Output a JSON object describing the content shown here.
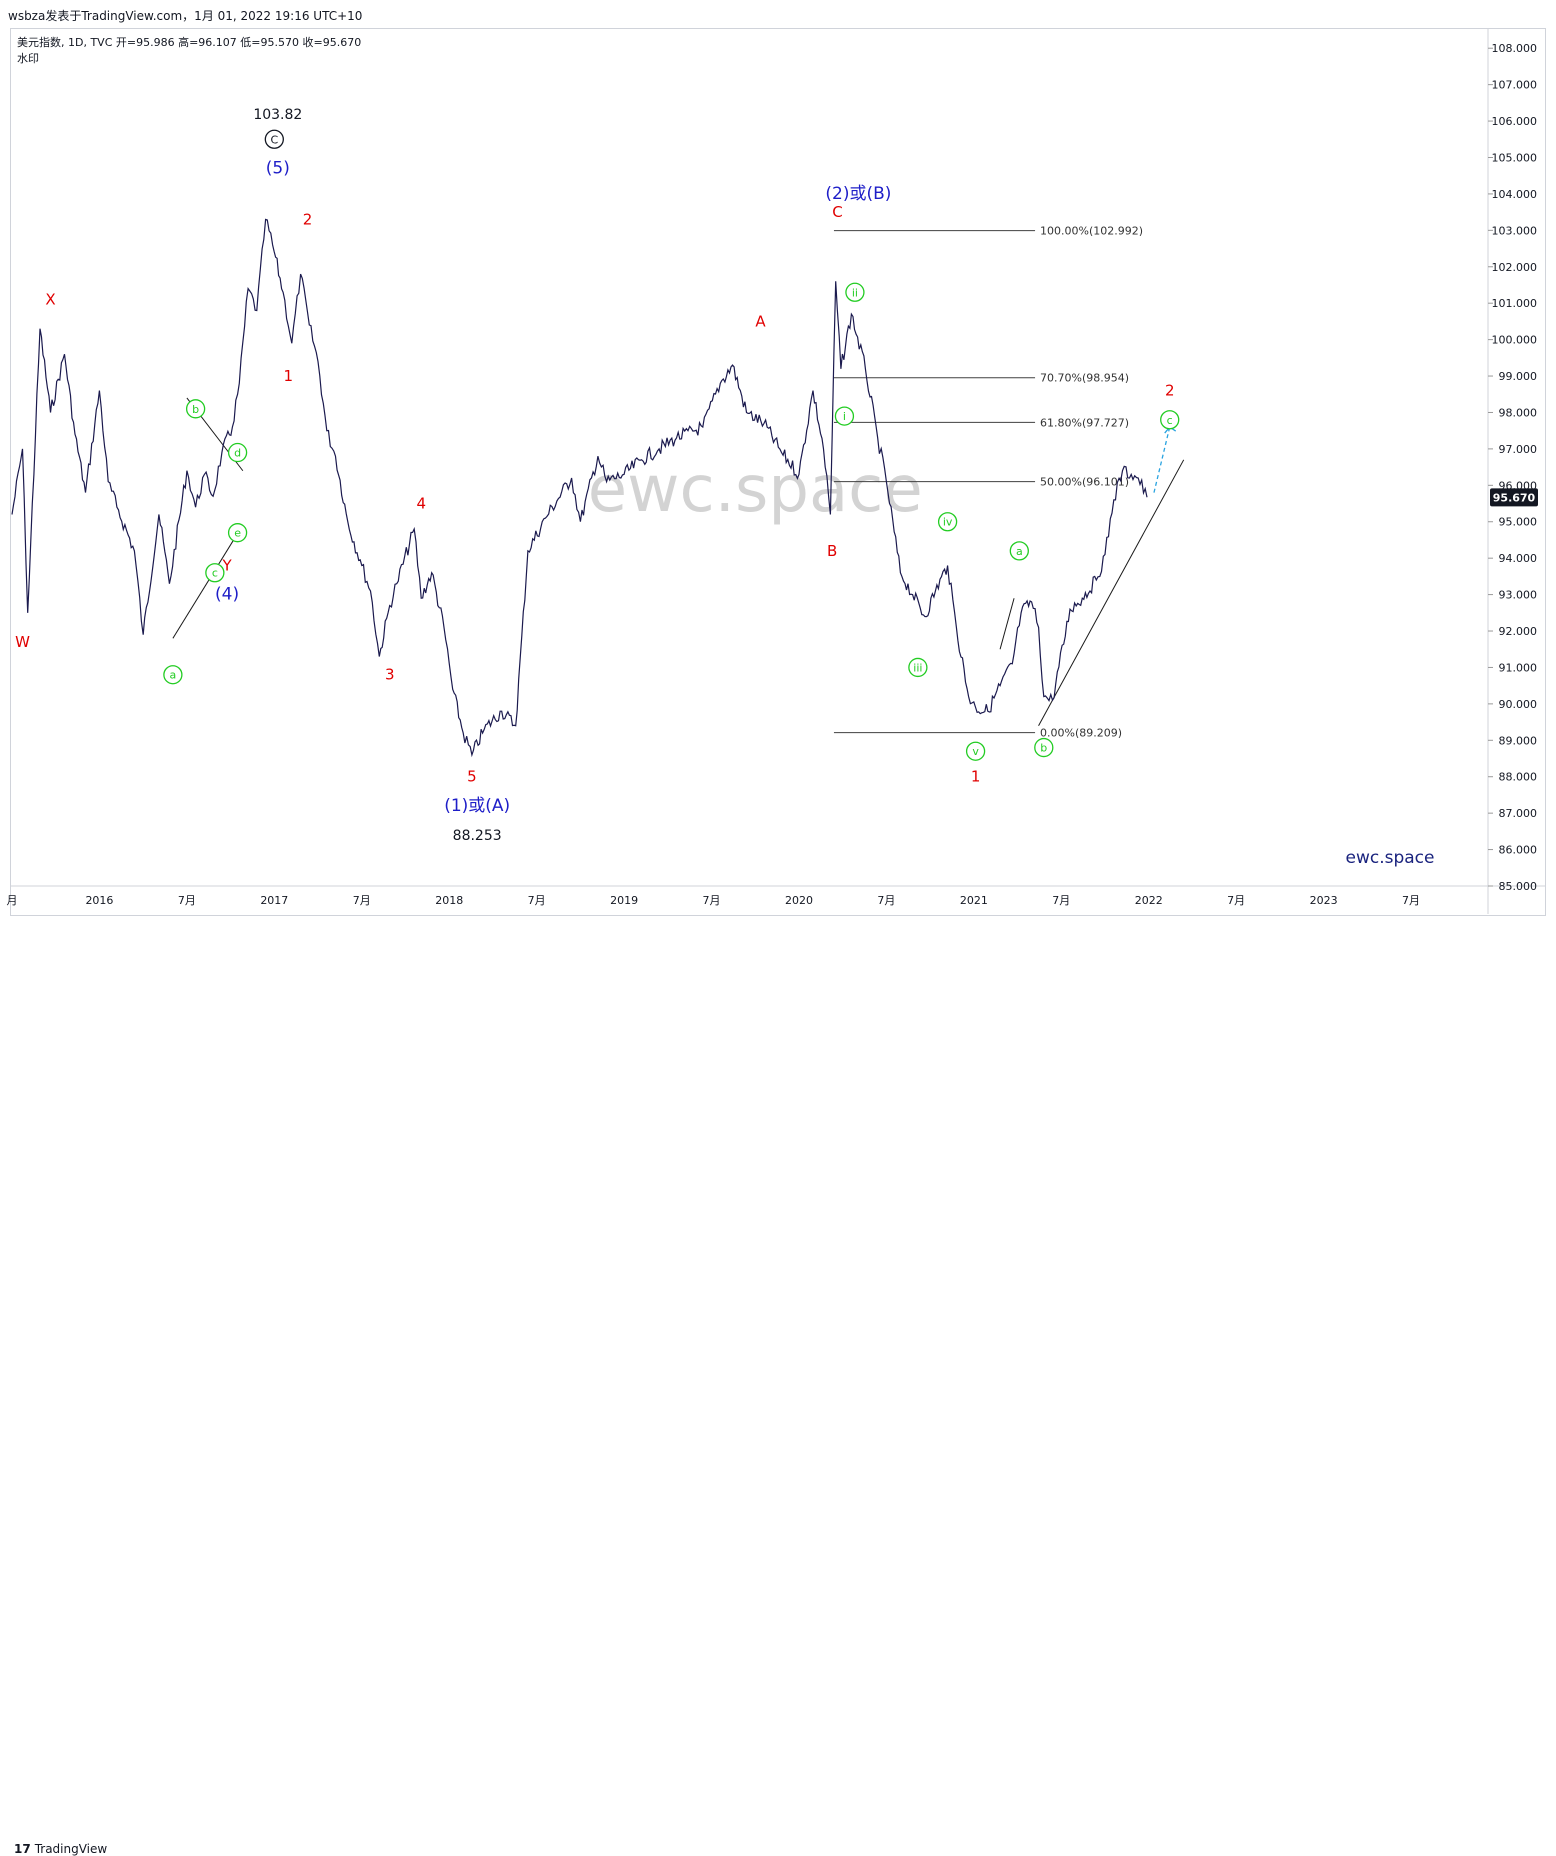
{
  "header": {
    "text": "wsbza发表于TradingView.com，1月 01, 2022 19:16 UTC+10"
  },
  "footer": {
    "logo_mark": "17",
    "logo_text": "TradingView"
  },
  "colors": {
    "price_line": "#1b1a4e",
    "wave_red": "#e00000",
    "wave_blue": "#1e1ec8",
    "wave_green": "#22cc22",
    "fib_line": "#404040",
    "projection": "#29a3e0",
    "watermark": "#d3d3d3",
    "last_price_bg": "#131722"
  },
  "chart_data": {
    "type": "line",
    "symbol_line": "美元指数, 1D, TVC  开=95.986  高=96.107  低=95.570  收=95.670",
    "symbol_subline": "水印",
    "watermark": "ewc.space",
    "brand_label": "ewc.space",
    "last_price": "95.670",
    "ylim": [
      85,
      108.5
    ],
    "y_ticks": [
      "85.000",
      "86.000",
      "87.000",
      "88.000",
      "89.000",
      "90.000",
      "91.000",
      "92.000",
      "93.000",
      "94.000",
      "95.000",
      "96.000",
      "97.000",
      "98.000",
      "99.000",
      "100.000",
      "101.000",
      "102.000",
      "103.000",
      "104.000",
      "105.000",
      "106.000",
      "107.000",
      "108.000"
    ],
    "x_ticks": [
      {
        "t": 2015.5,
        "label": "月"
      },
      {
        "t": 2016.0,
        "label": "2016"
      },
      {
        "t": 2016.5,
        "label": "7月"
      },
      {
        "t": 2017.0,
        "label": "2017"
      },
      {
        "t": 2017.5,
        "label": "7月"
      },
      {
        "t": 2018.0,
        "label": "2018"
      },
      {
        "t": 2018.5,
        "label": "7月"
      },
      {
        "t": 2019.0,
        "label": "2019"
      },
      {
        "t": 2019.5,
        "label": "7月"
      },
      {
        "t": 2020.0,
        "label": "2020"
      },
      {
        "t": 2020.5,
        "label": "7月"
      },
      {
        "t": 2021.0,
        "label": "2021"
      },
      {
        "t": 2021.5,
        "label": "7月"
      },
      {
        "t": 2022.0,
        "label": "2022"
      },
      {
        "t": 2022.5,
        "label": "7月"
      },
      {
        "t": 2023.0,
        "label": "2023"
      },
      {
        "t": 2023.5,
        "label": "7月"
      }
    ],
    "series": [
      {
        "x": [
          2015.5,
          2015.56,
          2015.59,
          2015.66,
          2015.72,
          2015.8,
          2015.86,
          2015.92,
          2016.0,
          2016.05,
          2016.1,
          2016.2,
          2016.25,
          2016.34,
          2016.4,
          2016.5,
          2016.55,
          2016.6,
          2016.65,
          2016.7,
          2016.76,
          2016.8,
          2016.85,
          2016.9,
          2016.95,
          2016.99,
          2017.05,
          2017.1,
          2017.15,
          2017.2,
          2017.25,
          2017.3,
          2017.35,
          2017.42,
          2017.5,
          2017.55,
          2017.6,
          2017.66,
          2017.7,
          2017.8,
          2017.84,
          2017.9,
          2017.97,
          2018.02,
          2018.08,
          2018.13,
          2018.2,
          2018.3,
          2018.38,
          2018.45,
          2018.55,
          2018.7,
          2018.75,
          2018.85,
          2018.9,
          2019.0,
          2019.1,
          2019.2,
          2019.3,
          2019.45,
          2019.55,
          2019.62,
          2019.7,
          2019.8,
          2019.9,
          2020.0,
          2020.08,
          2020.14,
          2020.18,
          2020.21,
          2020.24,
          2020.3,
          2020.38,
          2020.45,
          2020.5,
          2020.58,
          2020.65,
          2020.72,
          2020.78,
          2020.85,
          2020.9,
          2020.97,
          2021.01,
          2021.08,
          2021.15,
          2021.22,
          2021.27,
          2021.33,
          2021.37,
          2021.4,
          2021.45,
          2021.55,
          2021.62,
          2021.7,
          2021.75,
          2021.8,
          2021.85,
          2021.9,
          2021.94,
          2021.99
        ],
        "values": [
          95.2,
          97.0,
          92.5,
          100.3,
          98.0,
          99.6,
          97.4,
          95.8,
          98.6,
          96.1,
          95.4,
          94.2,
          91.9,
          95.2,
          93.3,
          96.4,
          95.4,
          96.3,
          95.7,
          96.9,
          97.6,
          98.8,
          101.4,
          100.8,
          103.3,
          102.6,
          101.3,
          99.9,
          101.8,
          100.4,
          99.4,
          97.5,
          96.8,
          95.0,
          93.8,
          93.1,
          91.3,
          92.7,
          93.3,
          94.8,
          92.9,
          93.6,
          92.1,
          90.4,
          89.2,
          88.6,
          89.3,
          89.8,
          89.4,
          94.2,
          95.1,
          96.2,
          95.0,
          96.8,
          96.1,
          96.3,
          96.7,
          97.0,
          97.3,
          97.6,
          98.8,
          99.3,
          98.0,
          97.7,
          96.9,
          96.3,
          98.6,
          97.0,
          95.2,
          101.6,
          99.2,
          100.7,
          99.2,
          97.3,
          96.1,
          93.6,
          93.0,
          92.4,
          93.1,
          93.8,
          92.1,
          90.2,
          89.9,
          89.8,
          90.5,
          91.1,
          92.5,
          92.8,
          92.1,
          90.2,
          90.1,
          92.6,
          92.9,
          93.4,
          94.1,
          95.6,
          96.4,
          96.3,
          96.2,
          95.67
        ]
      }
    ],
    "fib_levels": [
      {
        "label": "100.00%(102.992)",
        "value": 102.992
      },
      {
        "label": "70.70%(98.954)",
        "value": 98.954
      },
      {
        "label": "61.80%(97.727)",
        "value": 97.727
      },
      {
        "label": "50.00%(96.101)",
        "value": 96.101
      },
      {
        "label": "0.00%(89.209)",
        "value": 89.209
      }
    ],
    "fib_range_x": [
      2020.2,
      2021.35
    ],
    "wave_labels": [
      {
        "text": "W",
        "x": 2015.56,
        "y": 91.7,
        "color": "red",
        "style": "plain"
      },
      {
        "text": "X",
        "x": 2015.72,
        "y": 101.1,
        "color": "red",
        "style": "plain"
      },
      {
        "text": "Y",
        "x": 2016.73,
        "y": 93.8,
        "color": "red",
        "style": "plain"
      },
      {
        "text": "(4)",
        "x": 2016.73,
        "y": 93.0,
        "color": "blue",
        "style": "plain"
      },
      {
        "text": "a",
        "x": 2016.42,
        "y": 90.8,
        "color": "green",
        "style": "circle"
      },
      {
        "text": "b",
        "x": 2016.55,
        "y": 98.1,
        "color": "green",
        "style": "circle"
      },
      {
        "text": "c",
        "x": 2016.66,
        "y": 93.6,
        "color": "green",
        "style": "circle"
      },
      {
        "text": "d",
        "x": 2016.79,
        "y": 96.9,
        "color": "green",
        "style": "circle"
      },
      {
        "text": "e",
        "x": 2016.79,
        "y": 94.7,
        "color": "green",
        "style": "circle"
      },
      {
        "text": "103.82",
        "x": 2017.02,
        "y": 106.2,
        "color": "dark",
        "style": "plain"
      },
      {
        "text": "C",
        "x": 2017.0,
        "y": 105.5,
        "color": "dark",
        "style": "circle"
      },
      {
        "text": "(5)",
        "x": 2017.02,
        "y": 104.7,
        "color": "blue",
        "style": "plain"
      },
      {
        "text": "2",
        "x": 2017.19,
        "y": 103.3,
        "color": "red",
        "style": "plain"
      },
      {
        "text": "1",
        "x": 2017.08,
        "y": 99.0,
        "color": "red",
        "style": "plain"
      },
      {
        "text": "4",
        "x": 2017.84,
        "y": 95.5,
        "color": "red",
        "style": "plain"
      },
      {
        "text": "3",
        "x": 2017.66,
        "y": 90.8,
        "color": "red",
        "style": "plain"
      },
      {
        "text": "5",
        "x": 2018.13,
        "y": 88.0,
        "color": "red",
        "style": "plain"
      },
      {
        "text": "(1)或(A)",
        "x": 2018.16,
        "y": 87.2,
        "color": "blue",
        "style": "plain"
      },
      {
        "text": "88.253",
        "x": 2018.16,
        "y": 86.4,
        "color": "dark",
        "style": "plain"
      },
      {
        "text": "A",
        "x": 2019.78,
        "y": 100.5,
        "color": "red",
        "style": "plain"
      },
      {
        "text": "(2)或(B)",
        "x": 2020.34,
        "y": 104.0,
        "color": "blue",
        "style": "plain"
      },
      {
        "text": "C",
        "x": 2020.22,
        "y": 103.5,
        "color": "red",
        "style": "plain"
      },
      {
        "text": "B",
        "x": 2020.19,
        "y": 94.2,
        "color": "red",
        "style": "plain"
      },
      {
        "text": "ii",
        "x": 2020.32,
        "y": 101.3,
        "color": "green",
        "style": "circle"
      },
      {
        "text": "i",
        "x": 2020.26,
        "y": 97.9,
        "color": "green",
        "style": "circle"
      },
      {
        "text": "iii",
        "x": 2020.68,
        "y": 91.0,
        "color": "green",
        "style": "circle"
      },
      {
        "text": "iv",
        "x": 2020.85,
        "y": 95.0,
        "color": "green",
        "style": "circle"
      },
      {
        "text": "v",
        "x": 2021.01,
        "y": 88.7,
        "color": "green",
        "style": "circle"
      },
      {
        "text": "1",
        "x": 2021.01,
        "y": 88.0,
        "color": "red",
        "style": "plain"
      },
      {
        "text": "a",
        "x": 2021.26,
        "y": 94.2,
        "color": "green",
        "style": "circle"
      },
      {
        "text": "b",
        "x": 2021.4,
        "y": 88.8,
        "color": "green",
        "style": "circle"
      },
      {
        "text": "2",
        "x": 2022.12,
        "y": 98.6,
        "color": "red",
        "style": "plain"
      },
      {
        "text": "c",
        "x": 2022.12,
        "y": 97.8,
        "color": "green",
        "style": "circle"
      }
    ]
  }
}
